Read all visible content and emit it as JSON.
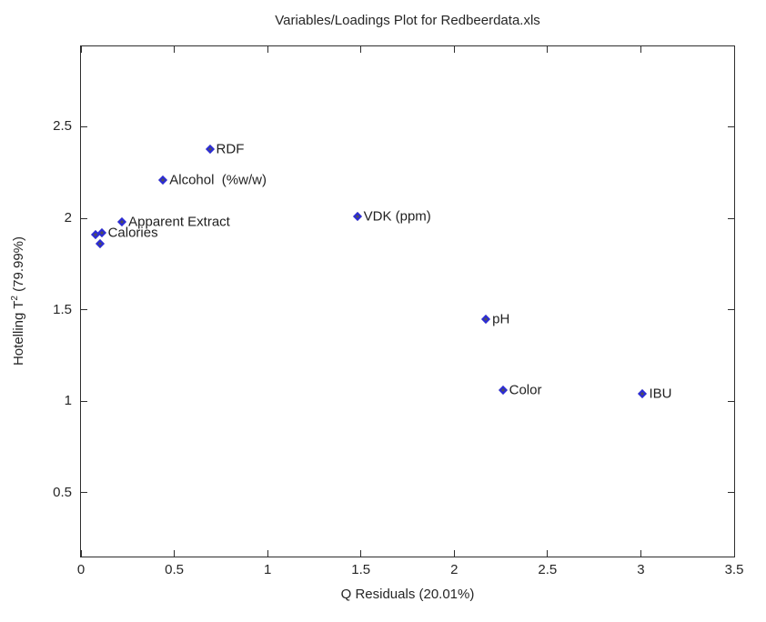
{
  "figure": {
    "background_color": "#ffffff",
    "axis_color": "#2e2e2e",
    "text_color": "#262626",
    "marker_edge_color": "#2b2bd9",
    "marker_fill_color": "#4f4f5e"
  },
  "chart_data": {
    "type": "scatter",
    "title": "Variables/Loadings Plot for Redbeerdata.xls",
    "xlabel": "Q Residuals (20.01%)",
    "ylabel": "Hotelling T2 (79.99%)",
    "ylabel_parts": {
      "prefix": "Hotelling T",
      "sup": "2",
      "suffix": " (79.99%)"
    },
    "xlim": [
      0,
      3.5
    ],
    "ylim": [
      0.15,
      2.94
    ],
    "xticks": [
      0,
      0.5,
      1,
      1.5,
      2,
      2.5,
      3,
      3.5
    ],
    "xtick_labels": [
      "0",
      "0.5",
      "1",
      "1.5",
      "2",
      "2.5",
      "3",
      "3.5"
    ],
    "yticks": [
      0.5,
      1,
      1.5,
      2,
      2.5
    ],
    "ytick_labels": [
      "0.5",
      "1",
      "1.5",
      "2",
      "2.5"
    ],
    "grid": false,
    "legend": null,
    "marker": "diamond",
    "points": [
      {
        "label": "RDF",
        "x": 0.69,
        "y": 2.38
      },
      {
        "label": "Alcohol  (%w/w)",
        "x": 0.44,
        "y": 2.21
      },
      {
        "label": "Apparent Extract",
        "x": 0.22,
        "y": 1.98
      },
      {
        "label": "Calories",
        "x": 0.11,
        "y": 1.92
      },
      {
        "label": "",
        "x": 0.08,
        "y": 1.91
      },
      {
        "label": "",
        "x": 0.1,
        "y": 1.86
      },
      {
        "label": "VDK (ppm)",
        "x": 1.48,
        "y": 2.01
      },
      {
        "label": "pH",
        "x": 2.17,
        "y": 1.45
      },
      {
        "label": "Color",
        "x": 2.26,
        "y": 1.06
      },
      {
        "label": "IBU",
        "x": 3.01,
        "y": 1.04
      }
    ]
  }
}
